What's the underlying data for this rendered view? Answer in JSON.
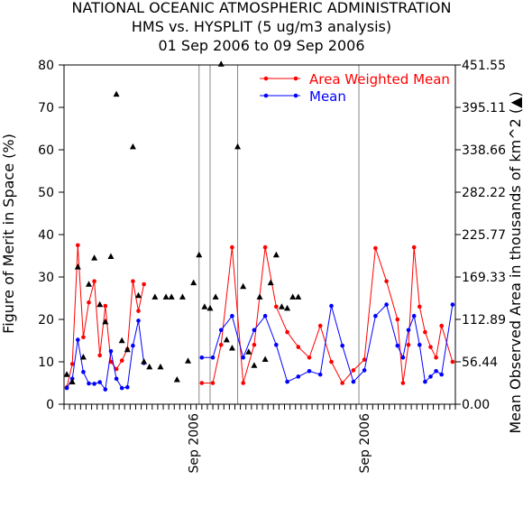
{
  "title_lines": [
    "NATIONAL OCEANIC ATMOSPHERIC ADMINISTRATION",
    "HMS vs. HYSPLIT (5 ug/m3 analysis)",
    "01 Sep 2006 to 09 Sep 2006"
  ],
  "colors": {
    "awm": "#ff0000",
    "mean": "#0000ff",
    "area": "#000000",
    "axis": "#000000",
    "vline": "#888888"
  },
  "chart_data": {
    "type": "line",
    "title": "NATIONAL OCEANIC ATMOSPHERIC ADMINISTRATION HMS vs. HYSPLIT (5 ug/m3 analysis) 01 Sep 2006 to 09 Sep 2006",
    "ylabel": "Figure of Merit in Space (%)",
    "y2label": "Mean Observed Area in thousands of km^2 (▲)",
    "ylim": [
      0,
      80
    ],
    "y2lim": [
      0,
      451.55
    ],
    "yticks": [
      "0",
      "10",
      "20",
      "30",
      "40",
      "50",
      "60",
      "70",
      "80"
    ],
    "y2ticks": [
      "0.00",
      "56.44",
      "112.89",
      "169.33",
      "225.77",
      "282.22",
      "338.66",
      "395.11",
      "451.55"
    ],
    "xtick_labels": [
      "Sep 2006",
      "Sep 2006"
    ],
    "x_label_index": [
      23,
      54
    ],
    "vline_index": [
      24.5,
      26.5,
      31.5,
      53.5
    ],
    "legend_position": "top-right",
    "legend": [
      "Area Weighted Mean",
      "Mean"
    ],
    "n": 71,
    "series": [
      {
        "name": "Area Weighted Mean",
        "values": [
          4.0,
          9.5,
          37.5,
          15.8,
          24.0,
          29.0,
          11.5,
          23.2,
          10.0,
          8.3,
          10.3,
          13.0,
          29.0,
          22.0,
          28.3,
          null,
          5.0,
          5.0,
          14.0,
          37.0,
          5.0,
          14.0,
          37.0,
          23.0,
          17.0,
          13.5,
          11.0,
          18.5,
          10.0,
          5.0,
          8.0,
          10.5,
          36.8,
          29.0,
          20.0,
          5.0,
          14.0,
          37.0,
          23.0,
          17.0,
          13.5,
          11.0,
          18.5,
          10.0
        ]
      },
      {
        "name": "Mean",
        "values": [
          3.8,
          6.0,
          15.2,
          7.6,
          4.9,
          4.8,
          5.2,
          3.5,
          12.5,
          6.0,
          3.8,
          4.0,
          13.8,
          19.7,
          9.7,
          null,
          11.0,
          11.0,
          17.5,
          20.8,
          11.0,
          17.5,
          20.8,
          14.0,
          5.3,
          6.5,
          7.8,
          7.0,
          23.2,
          13.8,
          5.3,
          8.0,
          20.8,
          23.5,
          13.8,
          11.0,
          17.5,
          20.8,
          14.0,
          5.3,
          6.5,
          7.8,
          7.0,
          23.5
        ]
      }
    ],
    "segments": [
      {
        "start": 0,
        "end": 14,
        "x": [
          0,
          1,
          2,
          3,
          4,
          5,
          6,
          7,
          8,
          9,
          10,
          11,
          12,
          13,
          14
        ]
      },
      {
        "start": 16,
        "end": 43,
        "x": [
          24.5,
          26.5,
          28,
          30,
          32,
          34,
          36,
          38,
          40,
          42,
          44,
          46,
          48,
          50,
          52,
          54,
          56,
          58,
          60,
          61,
          62,
          63,
          64,
          65,
          66,
          67,
          68,
          70
        ]
      }
    ],
    "area_points": [
      [
        0,
        40
      ],
      [
        1,
        30
      ],
      [
        2,
        183
      ],
      [
        3,
        63
      ],
      [
        4,
        160
      ],
      [
        5,
        195
      ],
      [
        6,
        133
      ],
      [
        7,
        110
      ],
      [
        8,
        197
      ],
      [
        9,
        413
      ],
      [
        10,
        85
      ],
      [
        11,
        73
      ],
      [
        12,
        343
      ],
      [
        13,
        145
      ],
      [
        14,
        57
      ],
      [
        15,
        50
      ],
      [
        16,
        143
      ],
      [
        17,
        50
      ],
      [
        18,
        143
      ],
      [
        19,
        143
      ],
      [
        20,
        33
      ],
      [
        21,
        143
      ],
      [
        22,
        58
      ],
      [
        23,
        162
      ],
      [
        24,
        199
      ],
      [
        25,
        130
      ],
      [
        26,
        128
      ],
      [
        27,
        143
      ],
      [
        28,
        453
      ],
      [
        29,
        86
      ],
      [
        30,
        75
      ],
      [
        31,
        343
      ],
      [
        32,
        157
      ],
      [
        33,
        70
      ],
      [
        34,
        52
      ],
      [
        35,
        143
      ],
      [
        36,
        60
      ],
      [
        37,
        162
      ],
      [
        38,
        199
      ],
      [
        39,
        130
      ],
      [
        40,
        128
      ],
      [
        41,
        143
      ],
      [
        42,
        143
      ]
    ]
  }
}
